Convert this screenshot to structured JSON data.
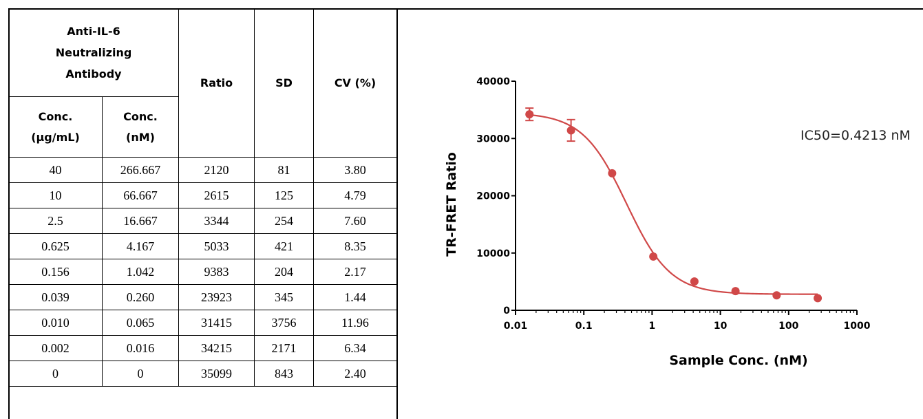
{
  "table": {
    "header": {
      "antibody": [
        "Anti-IL-6",
        "Neutralizing",
        "Antibody"
      ],
      "ratio": "Ratio",
      "sd": "SD",
      "cv": "CV (%)",
      "conc_ug": [
        "Conc.",
        "(μg/mL)"
      ],
      "conc_nm": [
        "Conc.",
        "(nM)"
      ]
    },
    "rows": [
      [
        "40",
        "266.667",
        "2120",
        "81",
        "3.80"
      ],
      [
        "10",
        "66.667",
        "2615",
        "125",
        "4.79"
      ],
      [
        "2.5",
        "16.667",
        "3344",
        "254",
        "7.60"
      ],
      [
        "0.625",
        "4.167",
        "5033",
        "421",
        "8.35"
      ],
      [
        "0.156",
        "1.042",
        "9383",
        "204",
        "2.17"
      ],
      [
        "0.039",
        "0.260",
        "23923",
        "345",
        "1.44"
      ],
      [
        "0.010",
        "0.065",
        "31415",
        "3756",
        "11.96"
      ],
      [
        "0.002",
        "0.016",
        "34215",
        "2171",
        "6.34"
      ],
      [
        "0",
        "0",
        "35099",
        "843",
        "2.40"
      ]
    ]
  },
  "chart_data": {
    "type": "scatter",
    "xlabel": "Sample Conc. (nM)",
    "ylabel": "TR-FRET Ratio",
    "xscale": "log",
    "xlim": [
      0.01,
      1000
    ],
    "ylim": [
      0,
      40000
    ],
    "xticks": [
      "0.01",
      "0.1",
      "1",
      "10",
      "100",
      "1000"
    ],
    "yticks": [
      "0",
      "10000",
      "20000",
      "30000",
      "40000"
    ],
    "annotation": "IC50=0.4213 nM",
    "color": "#d04848",
    "grid": false,
    "points": [
      {
        "x": 0.016,
        "y": 34215,
        "sd": 2171
      },
      {
        "x": 0.065,
        "y": 31415,
        "sd": 3756
      },
      {
        "x": 0.26,
        "y": 23923,
        "sd": 345
      },
      {
        "x": 1.042,
        "y": 9383,
        "sd": 204
      },
      {
        "x": 4.167,
        "y": 5033,
        "sd": 421
      },
      {
        "x": 16.667,
        "y": 3344,
        "sd": 254
      },
      {
        "x": 66.667,
        "y": 2615,
        "sd": 125
      },
      {
        "x": 266.667,
        "y": 2120,
        "sd": 81
      }
    ],
    "fit": {
      "top": 34500,
      "bottom": 2800,
      "ic50": 0.4213,
      "hill": 1.35
    }
  }
}
